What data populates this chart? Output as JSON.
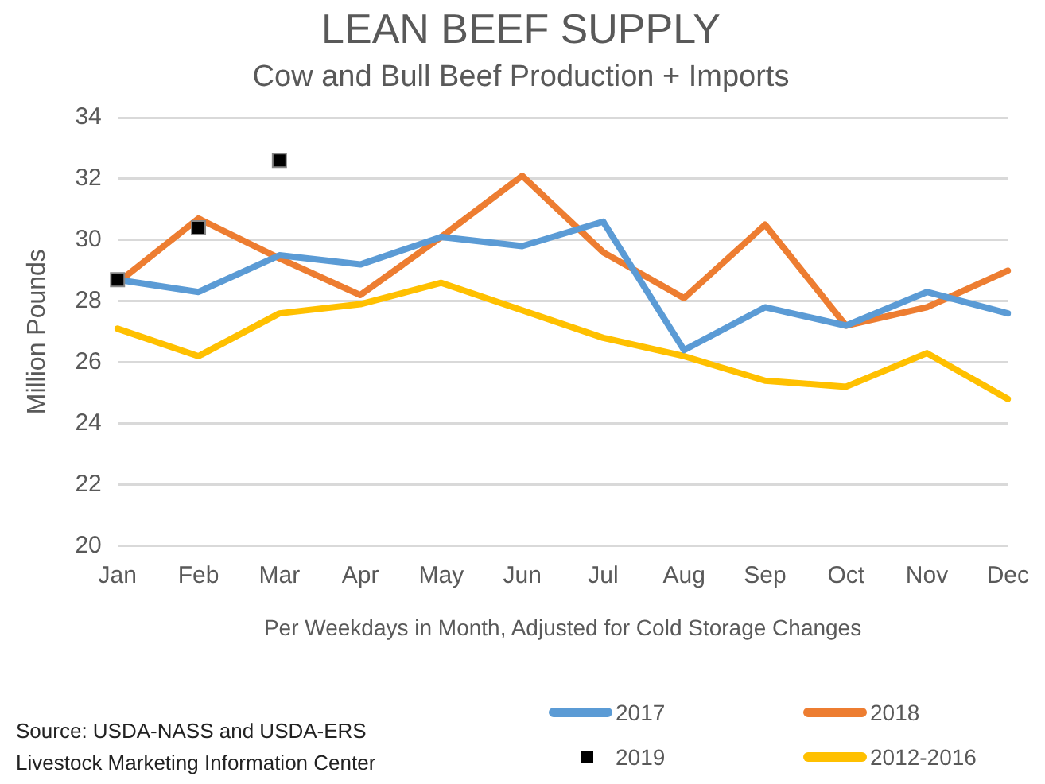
{
  "chart_data": {
    "type": "line",
    "title": "LEAN BEEF SUPPLY",
    "subtitle": "Cow and Bull Beef Production + Imports",
    "xlabel": "Per Weekdays in Month, Adjusted for Cold Storage Changes",
    "ylabel": "Million Pounds",
    "categories": [
      "Jan",
      "Feb",
      "Mar",
      "Apr",
      "May",
      "Jun",
      "Jul",
      "Aug",
      "Sep",
      "Oct",
      "Nov",
      "Dec"
    ],
    "series": [
      {
        "name": "2017",
        "color": "#5b9bd5",
        "values": [
          28.7,
          28.3,
          29.5,
          29.2,
          30.1,
          29.8,
          30.6,
          26.4,
          27.8,
          27.2,
          28.3,
          27.6
        ]
      },
      {
        "name": "2018",
        "color": "#ed7d31",
        "values": [
          28.6,
          30.7,
          29.4,
          28.2,
          30.1,
          32.1,
          29.6,
          28.1,
          30.5,
          27.2,
          27.8,
          29.0
        ]
      },
      {
        "name": "2019",
        "type": "scatter",
        "marker": "square",
        "color": "#000000",
        "values": [
          28.7,
          30.4,
          32.6,
          null,
          null,
          null,
          null,
          null,
          null,
          null,
          null,
          null
        ]
      },
      {
        "name": "2012-2016",
        "color": "#ffc000",
        "values": [
          27.1,
          26.2,
          27.6,
          27.9,
          28.6,
          27.7,
          26.8,
          26.2,
          25.4,
          25.2,
          26.3,
          24.8
        ]
      }
    ],
    "ylim": [
      20,
      34
    ],
    "yticks": [
      20,
      22,
      24,
      26,
      28,
      30,
      32,
      34
    ],
    "grid": "y",
    "legend": "bottom",
    "marker": "none",
    "annotations": [
      "Source: USDA-NASS and USDA-ERS",
      "Livestock Marketing Information Center"
    ]
  }
}
